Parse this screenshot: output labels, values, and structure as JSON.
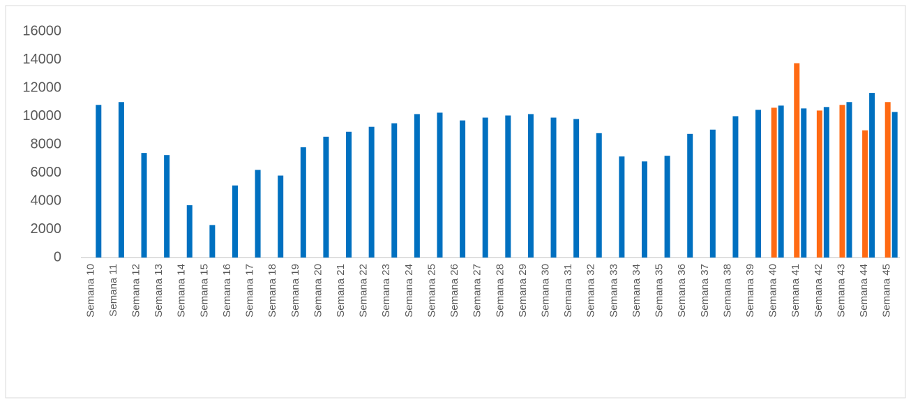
{
  "chart_data": {
    "type": "bar",
    "categories": [
      "Semana 10",
      "Semana 11",
      "Semana 12",
      "Semana 13",
      "Semana 14",
      "Semana 15",
      "Semana 16",
      "Semana 17",
      "Semana 18",
      "Semana 19",
      "Semana 20",
      "Semana 21",
      "Semana 22",
      "Semana 23",
      "Semana 24",
      "Semana 25",
      "Semana 26",
      "Semana 27",
      "Semana 28",
      "Semana 29",
      "Semana 30",
      "Semana 31",
      "Semana 32",
      "Semana 33",
      "Semana 34",
      "Semana 35",
      "Semana 36",
      "Semana 37",
      "Semana 38",
      "Semana 39",
      "Semana 40",
      "Semana 41",
      "Semana 42",
      "Semana 43",
      "Semana 44",
      "Semana 45"
    ],
    "series": [
      {
        "color": "#ff6a13",
        "values": [
          null,
          null,
          null,
          null,
          null,
          null,
          null,
          null,
          null,
          null,
          null,
          null,
          null,
          null,
          null,
          null,
          null,
          null,
          null,
          null,
          null,
          null,
          null,
          null,
          null,
          null,
          null,
          null,
          null,
          null,
          10600,
          13750,
          10400,
          10800,
          9000,
          11000
        ]
      },
      {
        "color": "#0070c0",
        "values": [
          10800,
          11000,
          7400,
          7250,
          3700,
          2300,
          5100,
          6200,
          5800,
          7800,
          8550,
          8900,
          9250,
          9500,
          10150,
          10250,
          9700,
          9900,
          10050,
          10150,
          9900,
          9800,
          8800,
          7150,
          6800,
          7200,
          8750,
          9050,
          10000,
          10450,
          10750,
          10550,
          10650,
          11000,
          11650,
          10300
        ]
      }
    ],
    "ylim": [
      0,
      16000
    ],
    "yticks": [
      0,
      2000,
      4000,
      6000,
      8000,
      10000,
      12000,
      14000,
      16000
    ],
    "grid": false
  }
}
